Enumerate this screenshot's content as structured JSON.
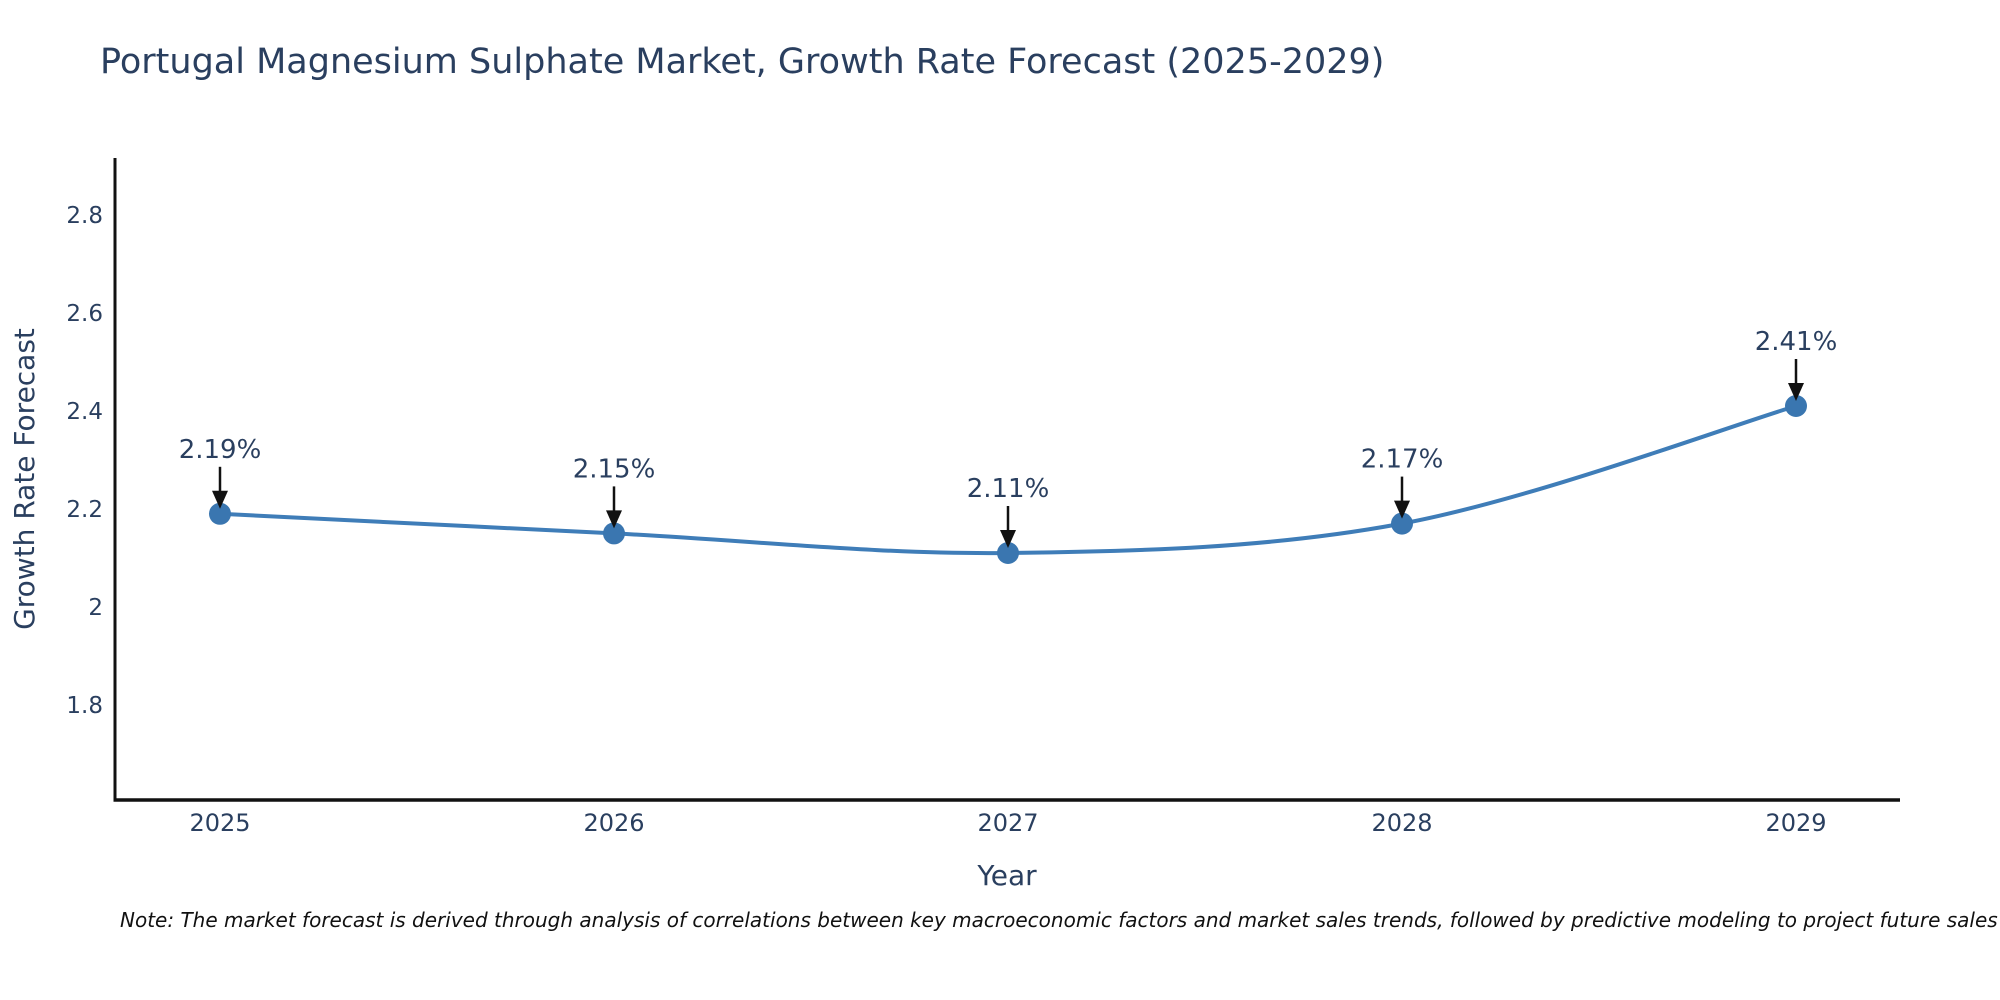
{
  "title": "Portugal Magnesium Sulphate Market, Growth Rate Forecast (2025-2029)",
  "note": "Note: The market forecast is derived through analysis of correlations between key macroeconomic factors and market sales trends, followed by predictive modeling to project future sales",
  "chart_data": {
    "type": "line",
    "title": "Portugal Magnesium Sulphate Market, Growth Rate Forecast (2025-2029)",
    "xlabel": "Year",
    "ylabel": "Growth Rate Forecast",
    "categories": [
      "2025",
      "2026",
      "2027",
      "2028",
      "2029"
    ],
    "series": [
      {
        "name": "Growth Rate Forecast",
        "values": [
          2.19,
          2.15,
          2.11,
          2.17,
          2.41
        ],
        "point_labels": [
          "2.19%",
          "2.15%",
          "2.11%",
          "2.17%",
          "2.41%"
        ]
      }
    ],
    "yticks": [
      1.8,
      2.0,
      2.2,
      2.4,
      2.6,
      2.8
    ],
    "ytick_labels": [
      "1.8",
      "2",
      "2.2",
      "2.4",
      "2.6",
      "2.8"
    ],
    "ylim": [
      1.606,
      2.916
    ],
    "grid": false,
    "legend_position": "none",
    "line_shape": "spline",
    "colors": {
      "line": "#3f7db8",
      "marker": "#3a76b0",
      "axis": "#111111",
      "arrow": "#111111",
      "text": "#2a3f5f",
      "note_text": "#111111",
      "background": "#ffffff"
    }
  }
}
